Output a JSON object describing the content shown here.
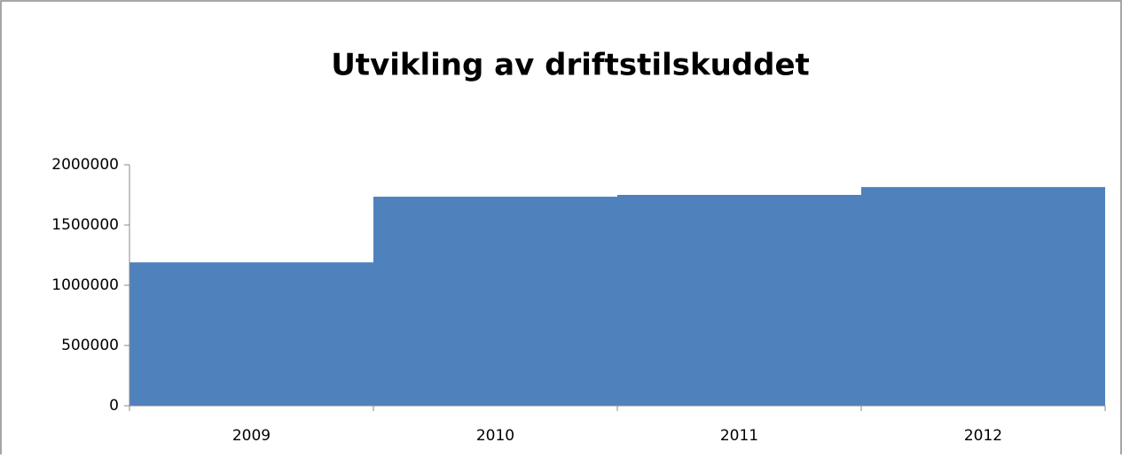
{
  "chart_data": {
    "type": "bar",
    "title": "Utvikling av driftstilskuddet",
    "categories": [
      "2009",
      "2010",
      "2011",
      "2012"
    ],
    "values": [
      1190000,
      1735000,
      1750000,
      1815000
    ],
    "color": "#4f81bd",
    "ylim": [
      0,
      2000000
    ],
    "yticks": [
      0,
      500000,
      1000000,
      1500000,
      2000000
    ],
    "grid": false
  }
}
